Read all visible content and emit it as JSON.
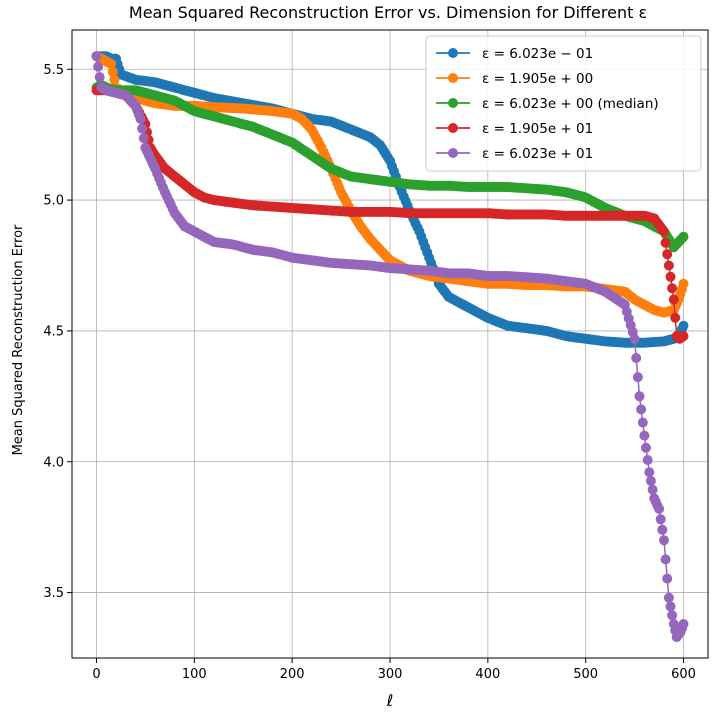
{
  "chart_data": {
    "type": "line",
    "title": "Mean Squared Reconstruction Error vs. Dimension for Different ε",
    "xlabel": "ℓ",
    "ylabel": "Mean Squared Reconstruction Error",
    "xlim": [
      -25,
      625
    ],
    "ylim": [
      3.25,
      5.65
    ],
    "xticks": [
      0,
      100,
      200,
      300,
      400,
      500,
      600
    ],
    "yticks": [
      3.5,
      4.0,
      4.5,
      5.0,
      5.5
    ],
    "xtick_labels": [
      "0",
      "100",
      "200",
      "300",
      "400",
      "500",
      "600"
    ],
    "ytick_labels": [
      "3.5",
      "4.0",
      "4.5",
      "5.0",
      "5.5"
    ],
    "grid": true,
    "legend_position": "top-right",
    "series": [
      {
        "name": "ε = 6.023e − 01",
        "color": "#1f77b4",
        "points": [
          [
            0,
            5.55
          ],
          [
            5,
            5.55
          ],
          [
            10,
            5.55
          ],
          [
            15,
            5.54
          ],
          [
            20,
            5.54
          ],
          [
            25,
            5.48
          ],
          [
            40,
            5.46
          ],
          [
            60,
            5.45
          ],
          [
            80,
            5.43
          ],
          [
            100,
            5.41
          ],
          [
            120,
            5.39
          ],
          [
            150,
            5.37
          ],
          [
            180,
            5.35
          ],
          [
            200,
            5.33
          ],
          [
            220,
            5.31
          ],
          [
            240,
            5.3
          ],
          [
            260,
            5.27
          ],
          [
            280,
            5.24
          ],
          [
            290,
            5.21
          ],
          [
            300,
            5.15
          ],
          [
            310,
            5.05
          ],
          [
            320,
            4.96
          ],
          [
            330,
            4.88
          ],
          [
            340,
            4.78
          ],
          [
            350,
            4.68
          ],
          [
            360,
            4.63
          ],
          [
            380,
            4.59
          ],
          [
            400,
            4.55
          ],
          [
            420,
            4.52
          ],
          [
            440,
            4.51
          ],
          [
            460,
            4.5
          ],
          [
            480,
            4.48
          ],
          [
            500,
            4.47
          ],
          [
            520,
            4.46
          ],
          [
            540,
            4.455
          ],
          [
            560,
            4.455
          ],
          [
            580,
            4.46
          ],
          [
            590,
            4.47
          ],
          [
            595,
            4.48
          ],
          [
            600,
            4.52
          ]
        ]
      },
      {
        "name": "ε = 1.905e + 00",
        "color": "#ff7f0e",
        "points": [
          [
            0,
            5.55
          ],
          [
            5,
            5.54
          ],
          [
            10,
            5.53
          ],
          [
            15,
            5.52
          ],
          [
            20,
            5.43
          ],
          [
            30,
            5.41
          ],
          [
            40,
            5.39
          ],
          [
            60,
            5.37
          ],
          [
            80,
            5.36
          ],
          [
            100,
            5.36
          ],
          [
            120,
            5.355
          ],
          [
            150,
            5.35
          ],
          [
            180,
            5.34
          ],
          [
            200,
            5.33
          ],
          [
            210,
            5.31
          ],
          [
            220,
            5.27
          ],
          [
            230,
            5.2
          ],
          [
            240,
            5.12
          ],
          [
            250,
            5.03
          ],
          [
            260,
            4.96
          ],
          [
            270,
            4.9
          ],
          [
            280,
            4.85
          ],
          [
            290,
            4.81
          ],
          [
            300,
            4.77
          ],
          [
            320,
            4.73
          ],
          [
            340,
            4.71
          ],
          [
            360,
            4.7
          ],
          [
            380,
            4.69
          ],
          [
            400,
            4.68
          ],
          [
            420,
            4.68
          ],
          [
            440,
            4.675
          ],
          [
            460,
            4.675
          ],
          [
            480,
            4.67
          ],
          [
            500,
            4.67
          ],
          [
            520,
            4.66
          ],
          [
            540,
            4.65
          ],
          [
            550,
            4.62
          ],
          [
            560,
            4.6
          ],
          [
            570,
            4.58
          ],
          [
            580,
            4.57
          ],
          [
            590,
            4.58
          ],
          [
            595,
            4.62
          ],
          [
            600,
            4.68
          ]
        ]
      },
      {
        "name": "ε = 6.023e + 00 (median)",
        "color": "#2ca02c",
        "points": [
          [
            0,
            5.43
          ],
          [
            5,
            5.44
          ],
          [
            10,
            5.43
          ],
          [
            20,
            5.42
          ],
          [
            40,
            5.42
          ],
          [
            60,
            5.4
          ],
          [
            80,
            5.38
          ],
          [
            100,
            5.34
          ],
          [
            120,
            5.32
          ],
          [
            140,
            5.3
          ],
          [
            160,
            5.28
          ],
          [
            180,
            5.25
          ],
          [
            200,
            5.22
          ],
          [
            220,
            5.17
          ],
          [
            240,
            5.12
          ],
          [
            260,
            5.09
          ],
          [
            280,
            5.08
          ],
          [
            300,
            5.07
          ],
          [
            320,
            5.06
          ],
          [
            340,
            5.055
          ],
          [
            360,
            5.055
          ],
          [
            380,
            5.05
          ],
          [
            400,
            5.05
          ],
          [
            420,
            5.05
          ],
          [
            440,
            5.045
          ],
          [
            460,
            5.04
          ],
          [
            480,
            5.03
          ],
          [
            500,
            5.01
          ],
          [
            520,
            4.97
          ],
          [
            540,
            4.94
          ],
          [
            560,
            4.92
          ],
          [
            570,
            4.9
          ],
          [
            580,
            4.88
          ],
          [
            585,
            4.85
          ],
          [
            590,
            4.82
          ],
          [
            595,
            4.84
          ],
          [
            600,
            4.86
          ]
        ]
      },
      {
        "name": "ε = 1.905e + 01",
        "color": "#d62728",
        "points": [
          [
            0,
            5.42
          ],
          [
            10,
            5.42
          ],
          [
            20,
            5.41
          ],
          [
            30,
            5.4
          ],
          [
            40,
            5.36
          ],
          [
            50,
            5.29
          ],
          [
            55,
            5.2
          ],
          [
            60,
            5.17
          ],
          [
            70,
            5.12
          ],
          [
            80,
            5.09
          ],
          [
            90,
            5.06
          ],
          [
            100,
            5.03
          ],
          [
            110,
            5.01
          ],
          [
            120,
            5.0
          ],
          [
            140,
            4.99
          ],
          [
            160,
            4.98
          ],
          [
            180,
            4.975
          ],
          [
            200,
            4.97
          ],
          [
            220,
            4.965
          ],
          [
            240,
            4.96
          ],
          [
            260,
            4.955
          ],
          [
            280,
            4.955
          ],
          [
            300,
            4.955
          ],
          [
            320,
            4.95
          ],
          [
            340,
            4.95
          ],
          [
            360,
            4.95
          ],
          [
            380,
            4.95
          ],
          [
            400,
            4.95
          ],
          [
            420,
            4.945
          ],
          [
            440,
            4.945
          ],
          [
            460,
            4.945
          ],
          [
            480,
            4.94
          ],
          [
            500,
            4.94
          ],
          [
            520,
            4.94
          ],
          [
            540,
            4.94
          ],
          [
            560,
            4.94
          ],
          [
            570,
            4.93
          ],
          [
            580,
            4.88
          ],
          [
            585,
            4.75
          ],
          [
            590,
            4.62
          ],
          [
            593,
            4.48
          ],
          [
            596,
            4.47
          ],
          [
            600,
            4.48
          ]
        ]
      },
      {
        "name": "ε = 6.023e + 01",
        "color": "#9467bd",
        "points": [
          [
            0,
            5.55
          ],
          [
            5,
            5.43
          ],
          [
            10,
            5.42
          ],
          [
            20,
            5.41
          ],
          [
            30,
            5.4
          ],
          [
            40,
            5.36
          ],
          [
            45,
            5.31
          ],
          [
            50,
            5.2
          ],
          [
            55,
            5.16
          ],
          [
            60,
            5.12
          ],
          [
            70,
            5.03
          ],
          [
            80,
            4.95
          ],
          [
            90,
            4.9
          ],
          [
            100,
            4.88
          ],
          [
            120,
            4.84
          ],
          [
            140,
            4.83
          ],
          [
            160,
            4.81
          ],
          [
            180,
            4.8
          ],
          [
            200,
            4.78
          ],
          [
            220,
            4.77
          ],
          [
            240,
            4.76
          ],
          [
            260,
            4.755
          ],
          [
            280,
            4.75
          ],
          [
            300,
            4.74
          ],
          [
            320,
            4.735
          ],
          [
            340,
            4.73
          ],
          [
            360,
            4.72
          ],
          [
            380,
            4.72
          ],
          [
            400,
            4.71
          ],
          [
            420,
            4.71
          ],
          [
            440,
            4.705
          ],
          [
            460,
            4.7
          ],
          [
            480,
            4.69
          ],
          [
            500,
            4.68
          ],
          [
            520,
            4.65
          ],
          [
            540,
            4.6
          ],
          [
            550,
            4.47
          ],
          [
            555,
            4.25
          ],
          [
            560,
            4.1
          ],
          [
            565,
            3.96
          ],
          [
            570,
            3.86
          ],
          [
            575,
            3.82
          ],
          [
            580,
            3.7
          ],
          [
            585,
            3.48
          ],
          [
            590,
            3.38
          ],
          [
            593,
            3.33
          ],
          [
            597,
            3.35
          ],
          [
            600,
            3.38
          ]
        ]
      }
    ]
  }
}
